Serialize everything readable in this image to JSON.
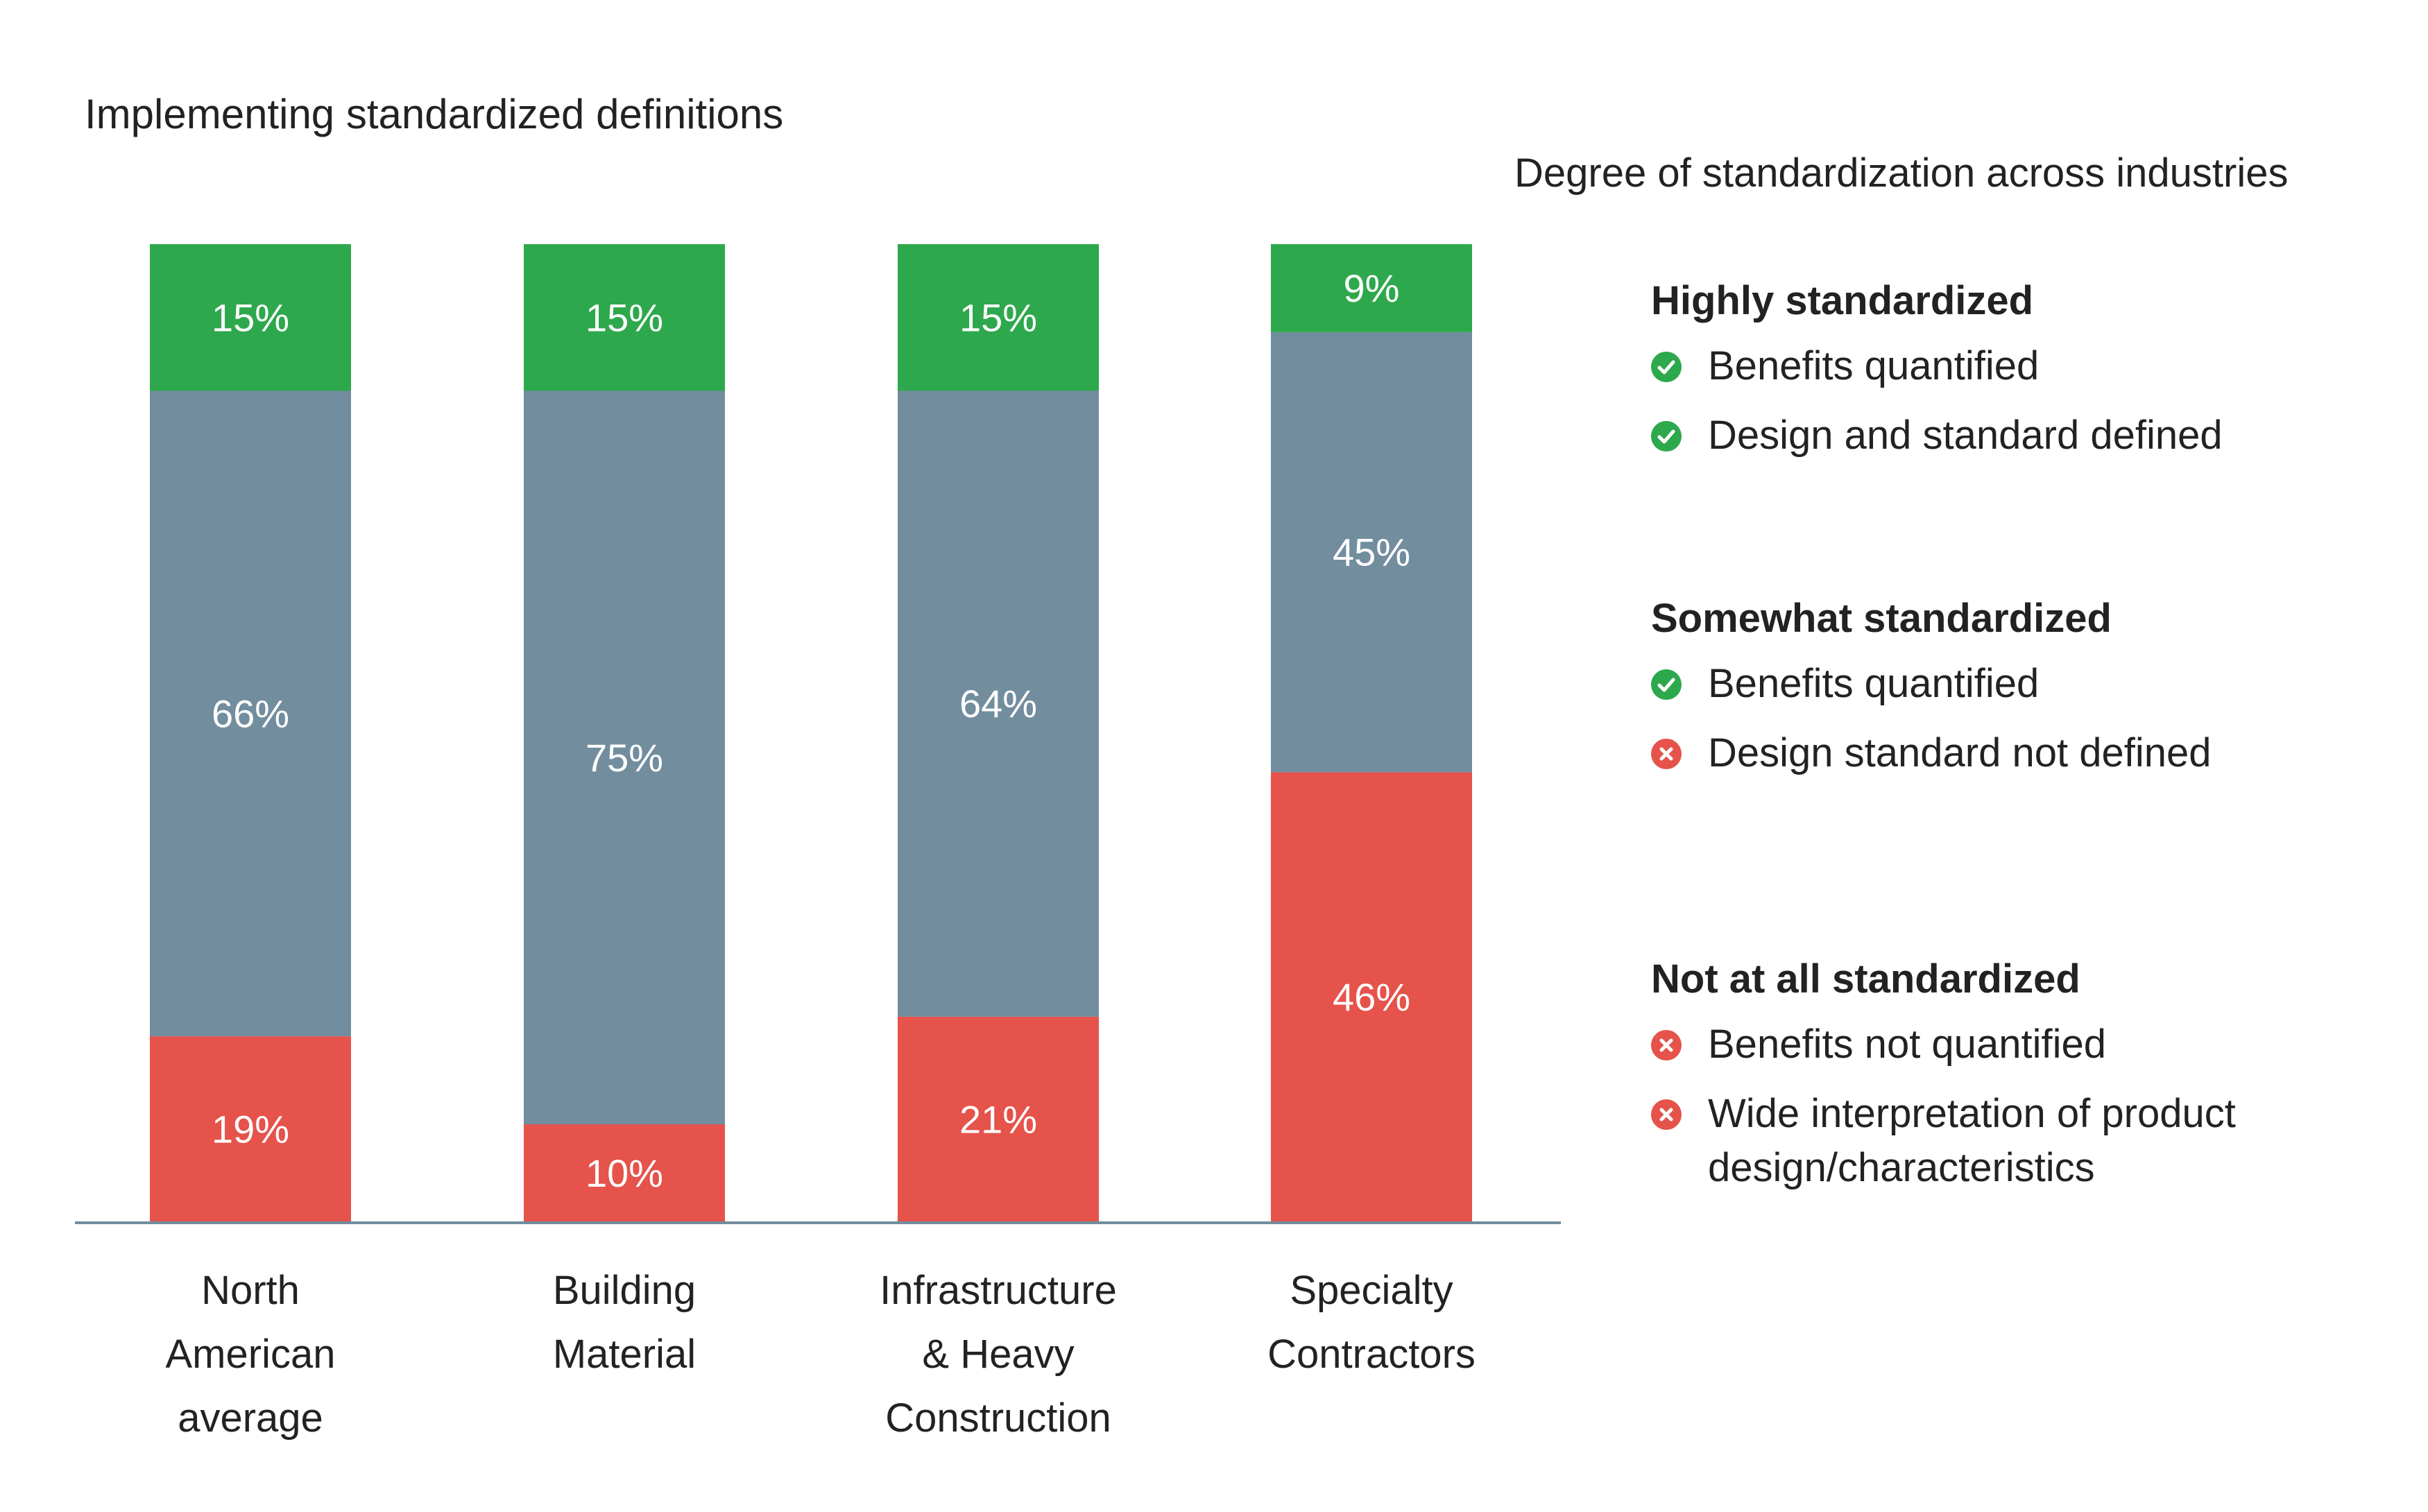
{
  "chart_data": {
    "type": "bar",
    "stacked": true,
    "title": "Implementing standardized definitions",
    "categories": [
      "North American average",
      "Building Material",
      "Infrastructure & Heavy Construction",
      "Specialty Contractors"
    ],
    "category_lines": [
      [
        "North",
        "American",
        "average"
      ],
      [
        "Building",
        "Material"
      ],
      [
        "Infrastructure",
        "& Heavy",
        "Construction"
      ],
      [
        "Specialty",
        "Contractors"
      ]
    ],
    "series": [
      {
        "name": "Not at all standardized",
        "color": "#e5534b",
        "values": [
          19,
          10,
          21,
          46
        ]
      },
      {
        "name": "Somewhat standardized",
        "color": "#728d9e",
        "values": [
          66,
          75,
          64,
          45
        ]
      },
      {
        "name": "Highly standardized",
        "color": "#2ea84c",
        "values": [
          15,
          15,
          15,
          9
        ]
      }
    ],
    "ylim": [
      0,
      100
    ],
    "value_suffix": "%",
    "grid": false,
    "legend_position": "right"
  },
  "legend": {
    "title": "Degree of standardization across industries",
    "groups": [
      {
        "heading": "Highly standardized",
        "items": [
          {
            "icon": "check-icon",
            "text": "Benefits quantified"
          },
          {
            "icon": "check-icon",
            "text": "Design and standard defined"
          }
        ]
      },
      {
        "heading": "Somewhat standardized",
        "items": [
          {
            "icon": "check-icon",
            "text": "Benefits quantified"
          },
          {
            "icon": "cross-icon",
            "text": "Design standard not defined"
          }
        ]
      },
      {
        "heading": "Not at all standardized",
        "items": [
          {
            "icon": "cross-icon",
            "text": "Benefits not quantified"
          },
          {
            "icon": "cross-icon",
            "text": "Wide interpretation of product design/characteristics"
          }
        ]
      }
    ]
  }
}
